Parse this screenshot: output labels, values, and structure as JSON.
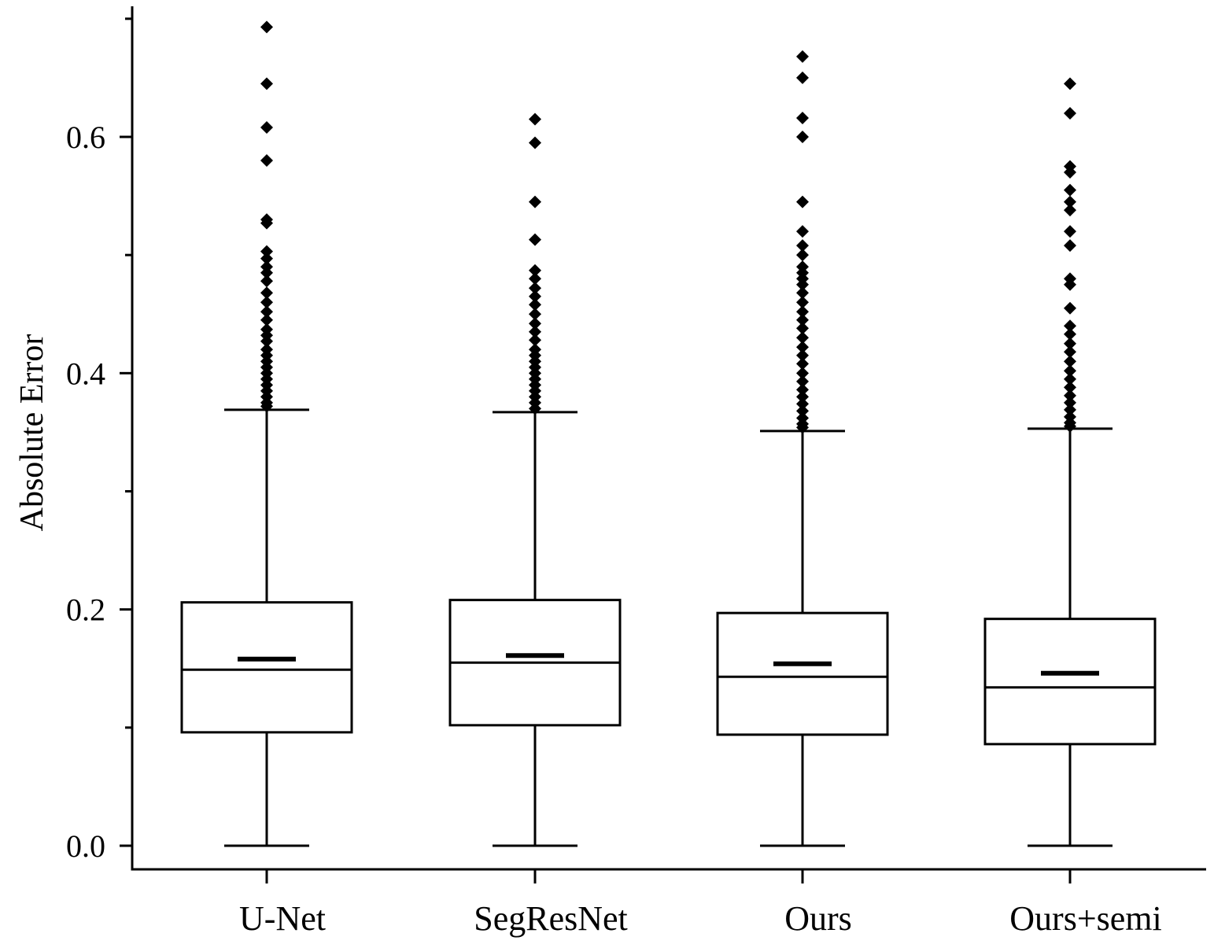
{
  "chart_data": {
    "type": "box",
    "title": "",
    "xlabel": "",
    "ylabel": "Absolute Error",
    "ylim": [
      -0.02,
      0.71
    ],
    "yticks": [
      0.0,
      0.2,
      0.4,
      0.6
    ],
    "ytick_labels": [
      "0.0",
      "0.2",
      "0.4",
      "0.6"
    ],
    "grid": false,
    "legend": "none",
    "mean_marker": "short bar",
    "outlier_marker": "diamond",
    "colors": {
      "stroke": "#000000",
      "fill": "#ffffff",
      "outlier": "#000000"
    },
    "categories": [
      "U-Net",
      "SegResNet",
      "Ours",
      "Ours+semi"
    ],
    "boxes": [
      {
        "name": "U-Net",
        "whisker_low": 0.0,
        "q1": 0.096,
        "median": 0.149,
        "mean": 0.158,
        "q3": 0.206,
        "whisker_high": 0.369,
        "outliers": [
          0.693,
          0.645,
          0.608,
          0.58,
          0.53,
          0.527,
          0.503,
          0.497,
          0.49,
          0.485,
          0.478,
          0.468,
          0.46,
          0.452,
          0.445,
          0.437,
          0.432,
          0.427,
          0.42,
          0.415,
          0.41,
          0.405,
          0.4,
          0.395,
          0.39,
          0.385,
          0.38,
          0.375,
          0.372
        ]
      },
      {
        "name": "SegResNet",
        "whisker_low": 0.0,
        "q1": 0.102,
        "median": 0.155,
        "mean": 0.161,
        "q3": 0.208,
        "whisker_high": 0.367,
        "outliers": [
          0.615,
          0.595,
          0.545,
          0.513,
          0.487,
          0.48,
          0.472,
          0.465,
          0.458,
          0.45,
          0.442,
          0.435,
          0.428,
          0.42,
          0.415,
          0.41,
          0.405,
          0.4,
          0.395,
          0.39,
          0.385,
          0.38,
          0.375,
          0.37
        ]
      },
      {
        "name": "Ours",
        "whisker_low": 0.0,
        "q1": 0.094,
        "median": 0.143,
        "mean": 0.154,
        "q3": 0.197,
        "whisker_high": 0.351,
        "outliers": [
          0.668,
          0.65,
          0.616,
          0.6,
          0.545,
          0.52,
          0.508,
          0.5,
          0.49,
          0.485,
          0.48,
          0.475,
          0.468,
          0.46,
          0.452,
          0.445,
          0.438,
          0.43,
          0.422,
          0.415,
          0.408,
          0.4,
          0.393,
          0.386,
          0.38,
          0.374,
          0.368,
          0.362,
          0.357,
          0.354
        ]
      },
      {
        "name": "Ours+semi",
        "whisker_low": 0.0,
        "q1": 0.086,
        "median": 0.134,
        "mean": 0.146,
        "q3": 0.192,
        "whisker_high": 0.353,
        "outliers": [
          0.645,
          0.62,
          0.575,
          0.57,
          0.555,
          0.545,
          0.538,
          0.52,
          0.508,
          0.48,
          0.475,
          0.455,
          0.44,
          0.433,
          0.425,
          0.418,
          0.41,
          0.402,
          0.395,
          0.388,
          0.381,
          0.375,
          0.369,
          0.363,
          0.358,
          0.355
        ]
      }
    ]
  }
}
